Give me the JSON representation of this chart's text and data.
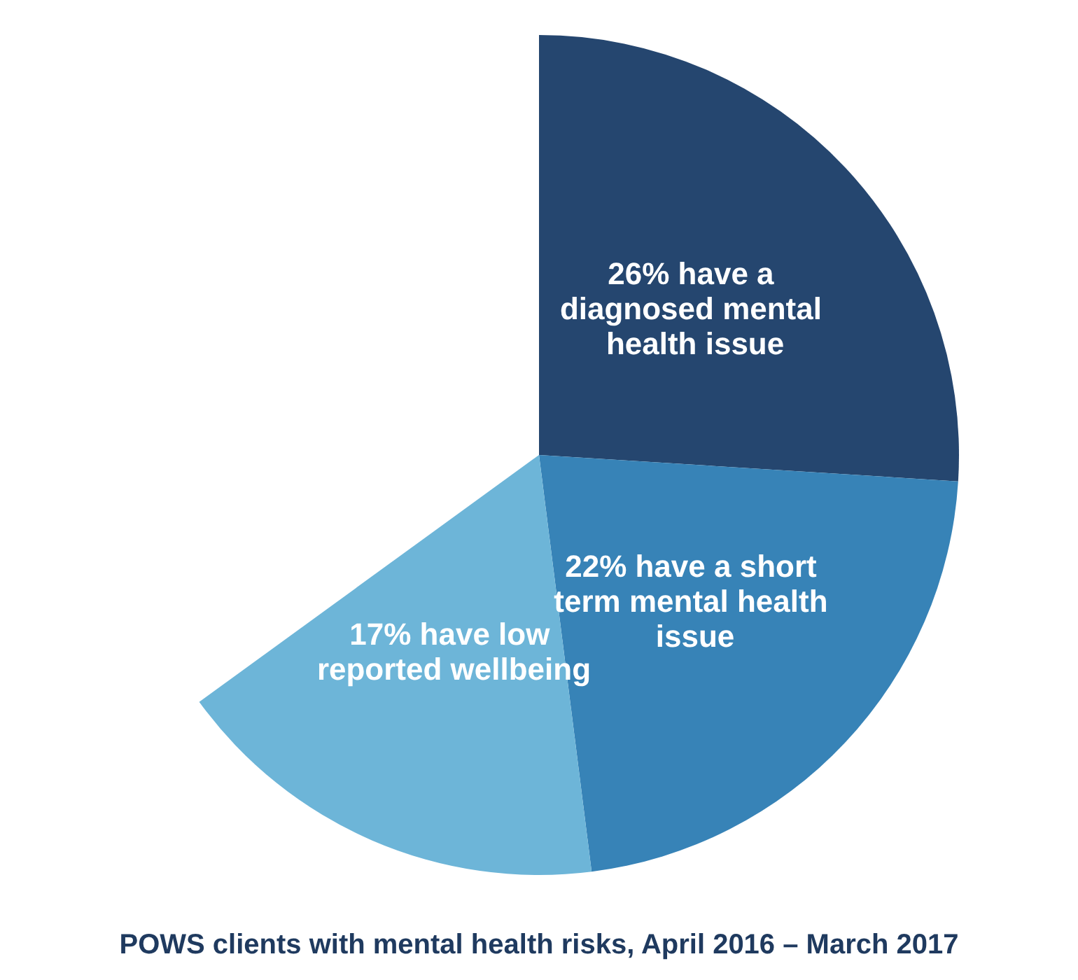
{
  "chart_data": {
    "type": "pie",
    "title": "POWS clients with mental health risks, April 2016 – March 2017",
    "categories": [
      "26% have a diagnosed mental health issue",
      "22% have a short term mental health issue",
      "17% have low reported wellbeing"
    ],
    "values": [
      26,
      22,
      17
    ],
    "colors": [
      "#25466f",
      "#3783b7",
      "#6db5d8"
    ],
    "legend": false
  }
}
